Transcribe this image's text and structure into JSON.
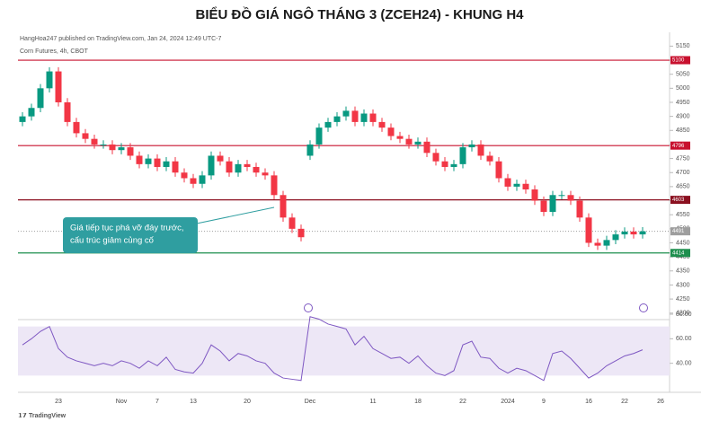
{
  "chart_data": {
    "type": "candlestick",
    "title": "BIỂU ĐỒ GIÁ NGÔ THÁNG 3 (ZCEH24) - KHUNG H4",
    "subtitle": "HangHoa247 published on TradingView.com, Jan 24, 2024 12:49 UTC-7",
    "symbol": "Corn Futures, 4h, CBOT",
    "footer": "TradingView",
    "annotation": [
      "Giá tiếp tục phá vỡ đáy trước,",
      "cấu trúc giảm củng cố"
    ],
    "categories": [
      null,
      null,
      null,
      null,
      "23",
      null,
      null,
      null,
      null,
      null,
      null,
      "Nov",
      null,
      null,
      null,
      "7",
      null,
      null,
      null,
      "13",
      null,
      null,
      null,
      null,
      null,
      "20",
      null,
      null,
      null,
      null,
      null,
      null,
      "Dec",
      null,
      null,
      null,
      null,
      null,
      null,
      "11",
      null,
      null,
      null,
      null,
      "18",
      null,
      null,
      null,
      null,
      "22",
      null,
      null,
      null,
      null,
      "2024",
      null,
      null,
      null,
      "9",
      null,
      null,
      null,
      null,
      "16",
      null,
      null,
      null,
      "22",
      null,
      null,
      null,
      "26"
    ],
    "open": [
      4880,
      4900,
      4930,
      5000,
      5060,
      4950,
      4880,
      4840,
      4820,
      4800,
      4800,
      4780,
      4790,
      4760,
      4730,
      4750,
      4720,
      4740,
      4700,
      4680,
      4660,
      4690,
      4760,
      4740,
      4700,
      4730,
      4720,
      4700,
      4690,
      4620,
      4540,
      4500,
      4760,
      4800,
      4860,
      4880,
      4900,
      4920,
      4880,
      4910,
      4880,
      4860,
      4830,
      4820,
      4800,
      4810,
      4770,
      4740,
      4720,
      4730,
      4790,
      4800,
      4760,
      4740,
      4680,
      4650,
      4660,
      4640,
      4600,
      4560,
      4620,
      4620,
      4600,
      4540,
      4450,
      4440,
      4460,
      4480,
      4490,
      4480,
      null,
      null
    ],
    "high": [
      4915,
      4945,
      5015,
      5075,
      5075,
      4965,
      4895,
      4855,
      4835,
      4815,
      4815,
      4805,
      4805,
      4775,
      4765,
      4765,
      4755,
      4755,
      4715,
      4695,
      4705,
      4775,
      4775,
      4755,
      4745,
      4745,
      4735,
      4715,
      4705,
      4635,
      4555,
      4515,
      4815,
      4875,
      4895,
      4915,
      4935,
      4935,
      4925,
      4925,
      4895,
      4875,
      4845,
      4835,
      4825,
      4825,
      4785,
      4755,
      4745,
      4805,
      4815,
      4815,
      4775,
      4755,
      4695,
      4675,
      4675,
      4655,
      4615,
      4635,
      4635,
      4635,
      4615,
      4555,
      4465,
      4475,
      4495,
      4505,
      4505,
      4506,
      null,
      null
    ],
    "low": [
      4865,
      4885,
      4915,
      4985,
      4935,
      4865,
      4825,
      4805,
      4785,
      4785,
      4765,
      4765,
      4745,
      4715,
      4715,
      4705,
      4705,
      4685,
      4665,
      4645,
      4645,
      4675,
      4725,
      4685,
      4685,
      4705,
      4685,
      4675,
      4605,
      4525,
      4485,
      4455,
      4745,
      4785,
      4845,
      4865,
      4885,
      4865,
      4865,
      4865,
      4845,
      4815,
      4805,
      4785,
      4785,
      4755,
      4725,
      4705,
      4705,
      4715,
      4775,
      4745,
      4725,
      4665,
      4635,
      4635,
      4625,
      4585,
      4545,
      4545,
      4605,
      4585,
      4525,
      4435,
      4425,
      4425,
      4445,
      4465,
      4465,
      4465,
      null,
      null
    ],
    "close": [
      4900,
      4930,
      5000,
      5060,
      4950,
      4880,
      4840,
      4820,
      4800,
      4800,
      4780,
      4790,
      4760,
      4730,
      4750,
      4720,
      4740,
      4700,
      4680,
      4660,
      4690,
      4760,
      4740,
      4700,
      4730,
      4720,
      4700,
      4690,
      4620,
      4540,
      4500,
      4470,
      4800,
      4860,
      4880,
      4900,
      4920,
      4880,
      4910,
      4880,
      4860,
      4830,
      4820,
      4800,
      4810,
      4770,
      4740,
      4720,
      4730,
      4790,
      4800,
      4760,
      4740,
      4680,
      4650,
      4660,
      4640,
      4600,
      4560,
      4620,
      4620,
      4600,
      4540,
      4450,
      4440,
      4460,
      4480,
      4490,
      4480,
      4491,
      null,
      null
    ],
    "up_color": "#089981",
    "down_color": "#f23645",
    "ylim": [
      4180,
      5180
    ],
    "yticks": [
      4200,
      4250,
      4300,
      4350,
      4400,
      4450,
      4500,
      4550,
      4600,
      4650,
      4700,
      4750,
      4800,
      4850,
      4900,
      4950,
      5000,
      5050,
      5100,
      5150
    ],
    "levels": [
      {
        "value": 5100,
        "color": "#c8102e"
      },
      {
        "value": 4796,
        "color": "#c8102e"
      },
      {
        "value": 4603,
        "color": "#8b0f1f"
      },
      {
        "value": 4414,
        "color": "#1e8f4e"
      }
    ],
    "last_price": {
      "value": 4491,
      "color": "#9e9e9e"
    },
    "rsi": {
      "values": [
        55,
        60,
        66,
        70,
        52,
        45,
        42,
        40,
        38,
        40,
        38,
        42,
        40,
        36,
        42,
        38,
        45,
        35,
        33,
        32,
        40,
        55,
        50,
        42,
        48,
        46,
        42,
        40,
        32,
        28,
        27,
        26,
        78,
        76,
        72,
        70,
        68,
        55,
        62,
        52,
        48,
        44,
        45,
        40,
        46,
        38,
        32,
        30,
        34,
        55,
        58,
        45,
        44,
        36,
        32,
        36,
        34,
        30,
        26,
        48,
        50,
        44,
        36,
        28,
        32,
        38,
        42,
        46,
        48,
        51,
        null,
        null
      ],
      "color": "#7e57c2",
      "band": [
        30,
        70
      ],
      "band_color": "#ede7f6",
      "ylim": [
        20,
        80
      ],
      "yticks": [
        {
          "value": 40,
          "label": "40.00"
        },
        {
          "value": 60,
          "label": "60.00"
        },
        {
          "value": 80,
          "label": "80.00"
        }
      ]
    }
  }
}
